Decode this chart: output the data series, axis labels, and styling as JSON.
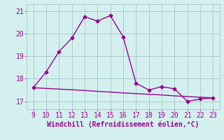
{
  "x": [
    9,
    10,
    11,
    12,
    13,
    14,
    15,
    16,
    17,
    18,
    19,
    20,
    21,
    22,
    23
  ],
  "y_line1": [
    17.6,
    18.3,
    19.2,
    19.8,
    20.75,
    20.55,
    20.8,
    19.85,
    17.8,
    17.5,
    17.65,
    17.55,
    17.0,
    17.1,
    17.15
  ],
  "y_line2": [
    17.6,
    17.57,
    17.54,
    17.51,
    17.48,
    17.44,
    17.41,
    17.37,
    17.34,
    17.31,
    17.28,
    17.24,
    17.21,
    17.18,
    17.15
  ],
  "line_color": "#990099",
  "bg_color": "#d4f0ee",
  "grid_color": "#aacccc",
  "xlabel": "Windchill (Refroidissement éolien,°C)",
  "xlim": [
    8.5,
    23.5
  ],
  "ylim": [
    16.65,
    21.3
  ],
  "yticks": [
    17,
    18,
    19,
    20,
    21
  ],
  "xticks": [
    9,
    10,
    11,
    12,
    13,
    14,
    15,
    16,
    17,
    18,
    19,
    20,
    21,
    22,
    23
  ],
  "xlabel_fontsize": 7,
  "tick_fontsize": 7,
  "line_width": 1.0,
  "marker": "D",
  "marker_size": 2.5
}
